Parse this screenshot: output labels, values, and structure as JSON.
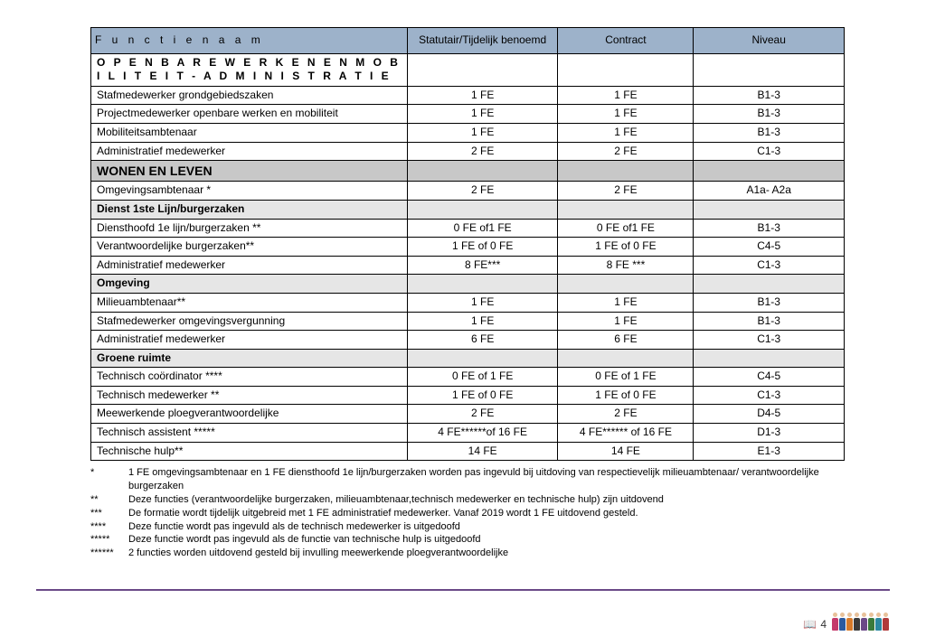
{
  "headers": {
    "func": "F u n c t i e n a a m",
    "stat": "Statutair/Tijdelijk benoemd",
    "contract": "Contract",
    "niveau": "Niveau"
  },
  "sections": [
    {
      "type": "section-bold",
      "label": "O P E N B A R E  W E R K E N  E N M O B I L I T E I T  -  A D M I N I S T R A T I E",
      "rows": [
        {
          "name": "Stafmedewerker grondgebiedszaken",
          "stat": "1 FE",
          "cont": "1 FE",
          "niv": "B1-3"
        },
        {
          "name": "Projectmedewerker openbare werken en mobiliteit",
          "stat": "1 FE",
          "cont": "1 FE",
          "niv": "B1-3"
        },
        {
          "name": "Mobiliteitsambtenaar",
          "stat": "1 FE",
          "cont": "1 FE",
          "niv": "B1-3"
        },
        {
          "name": "Administratief medewerker",
          "stat": "2 FE",
          "cont": "2 FE",
          "niv": "C1-3"
        }
      ]
    },
    {
      "type": "section-grey",
      "label": "WONEN EN LEVEN",
      "rows": [
        {
          "name": "Omgevingsambtenaar *",
          "stat": "2 FE",
          "cont": "2 FE",
          "niv": "A1a- A2a"
        }
      ]
    },
    {
      "type": "section-sub",
      "label": "Dienst 1ste Lijn/burgerzaken",
      "rows": [
        {
          "name": "Diensthoofd 1e lijn/burgerzaken **",
          "stat": "0 FE of1 FE",
          "cont": "0 FE of1 FE",
          "niv": "B1-3"
        },
        {
          "name": "Verantwoordelijke burgerzaken**",
          "stat": "1 FE of 0 FE",
          "cont": "1 FE of 0 FE",
          "niv": "C4-5"
        },
        {
          "name": "Administratief medewerker",
          "stat": "8 FE***",
          "cont": "8 FE ***",
          "niv": "C1-3"
        }
      ]
    },
    {
      "type": "section-sub",
      "label": "Omgeving",
      "rows": [
        {
          "name": "Milieuambtenaar**",
          "stat": "1 FE",
          "cont": "1 FE",
          "niv": "B1-3"
        },
        {
          "name": "Stafmedewerker omgevingsvergunning",
          "stat": "1 FE",
          "cont": "1 FE",
          "niv": "B1-3"
        },
        {
          "name": "Administratief medewerker",
          "stat": "6 FE",
          "cont": "6 FE",
          "niv": "C1-3"
        }
      ]
    },
    {
      "type": "section-sub",
      "label": "Groene ruimte",
      "rows": [
        {
          "name": "Technisch coördinator ****",
          "stat": "0 FE of 1 FE",
          "cont": "0 FE of 1 FE",
          "niv": "C4-5"
        },
        {
          "name": "Technisch medewerker **",
          "stat": "1 FE of 0 FE",
          "cont": "1 FE of 0 FE",
          "niv": "C1-3"
        },
        {
          "name": "Meewerkende ploegverantwoordelijke",
          "stat": "2 FE",
          "cont": "2 FE",
          "niv": "D4-5"
        },
        {
          "name": "Technisch assistent *****",
          "stat": "4 FE******of 16 FE",
          "cont": "4 FE****** of 16 FE",
          "niv": "D1-3"
        },
        {
          "name": "Technische hulp**",
          "stat": "14 FE",
          "cont": "14 FE",
          "niv": "E1-3"
        }
      ]
    }
  ],
  "footnotes": [
    {
      "mark": "*",
      "text": "1 FE omgevingsambtenaar en 1 FE diensthoofd 1e lijn/burgerzaken worden pas ingevuld bij uitdoving van respectievelijk milieuambtenaar/ verantwoordelijke burgerzaken"
    },
    {
      "mark": "**",
      "text": "Deze functies (verantwoordelijke burgerzaken, milieuambtenaar,technisch medewerker en technische hulp) zijn uitdovend"
    },
    {
      "mark": "***",
      "text": "De formatie wordt tijdelijk uitgebreid met 1 FE administratief medewerker. Vanaf 2019 wordt 1 FE uitdovend gesteld."
    },
    {
      "mark": "****",
      "text": "Deze functie wordt pas ingevuld als de technisch medewerker is uitgedoofd"
    },
    {
      "mark": "*****",
      "text": "Deze functie wordt pas ingevuld als de functie van technische hulp is uitgedoofd"
    },
    {
      "mark": "******",
      "text": "2 functies worden uitdovend gesteld bij invulling meewerkende ploegverantwoordelijke"
    }
  ],
  "page_number": "4",
  "people_colors": [
    "#c43a6b",
    "#2a5aa0",
    "#d67a2a",
    "#3a3a3a",
    "#6b4a87",
    "#3a7a3a",
    "#2a88a0",
    "#b03a3a"
  ]
}
